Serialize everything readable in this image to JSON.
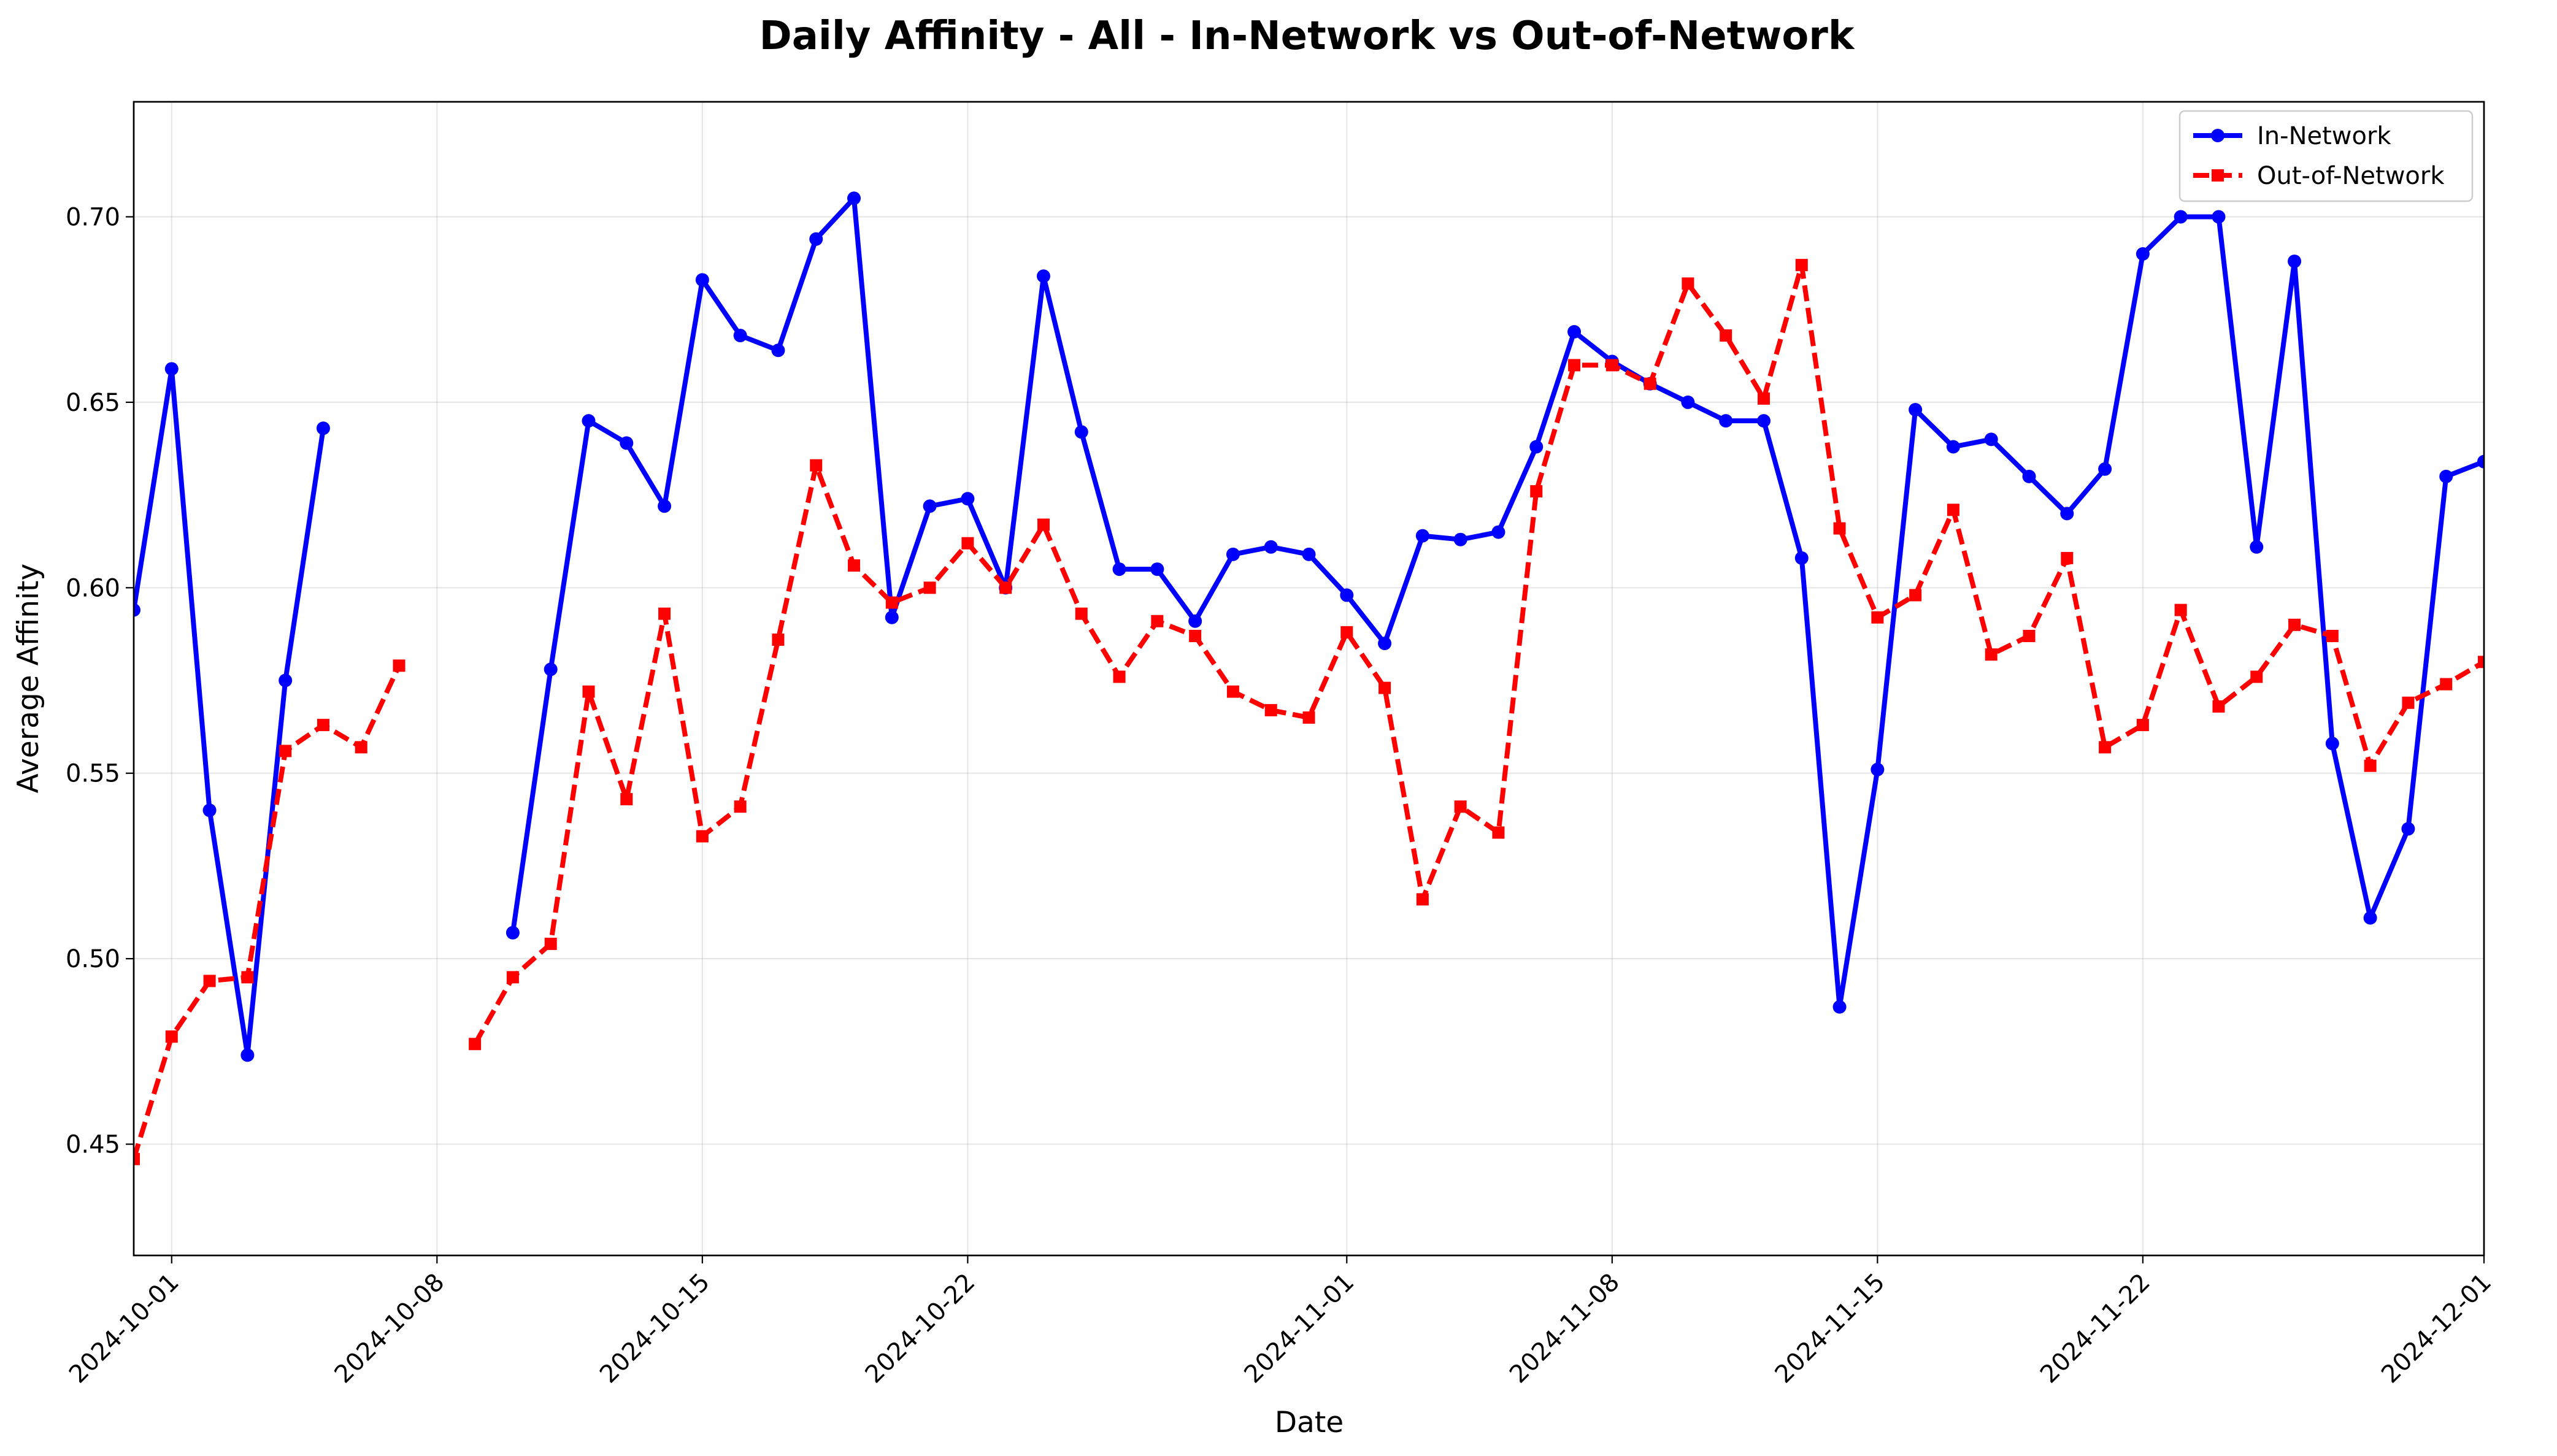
{
  "chart_data": {
    "type": "line",
    "title": "Daily Affinity - All - In-Network vs Out-of-Network",
    "xlabel": "Date",
    "ylabel": "Average Affinity",
    "xlim": [
      "2024-09-30",
      "2024-12-01"
    ],
    "ylim": [
      0.42,
      0.731
    ],
    "x_tick_labels": [
      "2024-10-01",
      "2024-10-08",
      "2024-10-15",
      "2024-10-22",
      "2024-11-01",
      "2024-11-08",
      "2024-11-15",
      "2024-11-22",
      "2024-12-01"
    ],
    "y_tick_labels": [
      "0.45",
      "0.50",
      "0.55",
      "0.60",
      "0.65",
      "0.70"
    ],
    "grid": true,
    "legend_position": "top-right",
    "series": [
      {
        "name": "In-Network",
        "color": "#0000ff",
        "line_style": "solid",
        "marker": "circle",
        "points": [
          [
            "2024-09-30",
            0.594
          ],
          [
            "2024-10-01",
            0.659
          ],
          [
            "2024-10-02",
            0.54
          ],
          [
            "2024-10-03",
            0.474
          ],
          [
            "2024-10-04",
            0.575
          ],
          [
            "2024-10-05",
            0.643
          ],
          [
            "2024-10-10",
            0.507
          ],
          [
            "2024-10-11",
            0.578
          ],
          [
            "2024-10-12",
            0.645
          ],
          [
            "2024-10-13",
            0.639
          ],
          [
            "2024-10-14",
            0.622
          ],
          [
            "2024-10-15",
            0.683
          ],
          [
            "2024-10-16",
            0.668
          ],
          [
            "2024-10-17",
            0.664
          ],
          [
            "2024-10-18",
            0.694
          ],
          [
            "2024-10-19",
            0.705
          ],
          [
            "2024-10-20",
            0.592
          ],
          [
            "2024-10-21",
            0.622
          ],
          [
            "2024-10-22",
            0.624
          ],
          [
            "2024-10-23",
            0.6
          ],
          [
            "2024-10-24",
            0.684
          ],
          [
            "2024-10-25",
            0.642
          ],
          [
            "2024-10-26",
            0.605
          ],
          [
            "2024-10-27",
            0.605
          ],
          [
            "2024-10-28",
            0.591
          ],
          [
            "2024-10-29",
            0.609
          ],
          [
            "2024-10-30",
            0.611
          ],
          [
            "2024-10-31",
            0.609
          ],
          [
            "2024-11-01",
            0.598
          ],
          [
            "2024-11-02",
            0.585
          ],
          [
            "2024-11-03",
            0.614
          ],
          [
            "2024-11-04",
            0.613
          ],
          [
            "2024-11-05",
            0.615
          ],
          [
            "2024-11-06",
            0.638
          ],
          [
            "2024-11-07",
            0.669
          ],
          [
            "2024-11-08",
            0.661
          ],
          [
            "2024-11-09",
            0.655
          ],
          [
            "2024-11-10",
            0.65
          ],
          [
            "2024-11-11",
            0.645
          ],
          [
            "2024-11-12",
            0.645
          ],
          [
            "2024-11-13",
            0.608
          ],
          [
            "2024-11-14",
            0.487
          ],
          [
            "2024-11-15",
            0.551
          ],
          [
            "2024-11-16",
            0.648
          ],
          [
            "2024-11-17",
            0.638
          ],
          [
            "2024-11-18",
            0.64
          ],
          [
            "2024-11-19",
            0.63
          ],
          [
            "2024-11-20",
            0.62
          ],
          [
            "2024-11-21",
            0.632
          ],
          [
            "2024-11-22",
            0.69
          ],
          [
            "2024-11-23",
            0.7
          ],
          [
            "2024-11-24",
            0.7
          ],
          [
            "2024-11-25",
            0.611
          ],
          [
            "2024-11-26",
            0.688
          ],
          [
            "2024-11-27",
            0.558
          ],
          [
            "2024-11-28",
            0.511
          ],
          [
            "2024-11-29",
            0.535
          ],
          [
            "2024-11-30",
            0.63
          ],
          [
            "2024-12-01",
            0.634
          ]
        ]
      },
      {
        "name": "Out-of-Network",
        "color": "#ff0000",
        "line_style": "dashed",
        "marker": "square",
        "points": [
          [
            "2024-09-30",
            0.446
          ],
          [
            "2024-10-01",
            0.479
          ],
          [
            "2024-10-02",
            0.494
          ],
          [
            "2024-10-03",
            0.495
          ],
          [
            "2024-10-04",
            0.556
          ],
          [
            "2024-10-05",
            0.563
          ],
          [
            "2024-10-06",
            0.557
          ],
          [
            "2024-10-07",
            0.579
          ],
          [
            "2024-10-09",
            0.477
          ],
          [
            "2024-10-10",
            0.495
          ],
          [
            "2024-10-11",
            0.504
          ],
          [
            "2024-10-12",
            0.572
          ],
          [
            "2024-10-13",
            0.543
          ],
          [
            "2024-10-14",
            0.593
          ],
          [
            "2024-10-15",
            0.533
          ],
          [
            "2024-10-16",
            0.541
          ],
          [
            "2024-10-17",
            0.586
          ],
          [
            "2024-10-18",
            0.633
          ],
          [
            "2024-10-19",
            0.606
          ],
          [
            "2024-10-20",
            0.596
          ],
          [
            "2024-10-21",
            0.6
          ],
          [
            "2024-10-22",
            0.612
          ],
          [
            "2024-10-23",
            0.6
          ],
          [
            "2024-10-24",
            0.617
          ],
          [
            "2024-10-25",
            0.593
          ],
          [
            "2024-10-26",
            0.576
          ],
          [
            "2024-10-27",
            0.591
          ],
          [
            "2024-10-28",
            0.587
          ],
          [
            "2024-10-29",
            0.572
          ],
          [
            "2024-10-30",
            0.567
          ],
          [
            "2024-10-31",
            0.565
          ],
          [
            "2024-11-01",
            0.588
          ],
          [
            "2024-11-02",
            0.573
          ],
          [
            "2024-11-03",
            0.516
          ],
          [
            "2024-11-04",
            0.541
          ],
          [
            "2024-11-05",
            0.534
          ],
          [
            "2024-11-06",
            0.626
          ],
          [
            "2024-11-07",
            0.66
          ],
          [
            "2024-11-08",
            0.66
          ],
          [
            "2024-11-09",
            0.655
          ],
          [
            "2024-11-10",
            0.682
          ],
          [
            "2024-11-11",
            0.668
          ],
          [
            "2024-11-12",
            0.651
          ],
          [
            "2024-11-13",
            0.687
          ],
          [
            "2024-11-14",
            0.616
          ],
          [
            "2024-11-15",
            0.592
          ],
          [
            "2024-11-16",
            0.598
          ],
          [
            "2024-11-17",
            0.621
          ],
          [
            "2024-11-18",
            0.582
          ],
          [
            "2024-11-19",
            0.587
          ],
          [
            "2024-11-20",
            0.608
          ],
          [
            "2024-11-21",
            0.557
          ],
          [
            "2024-11-22",
            0.563
          ],
          [
            "2024-11-23",
            0.594
          ],
          [
            "2024-11-24",
            0.568
          ],
          [
            "2024-11-25",
            0.576
          ],
          [
            "2024-11-26",
            0.59
          ],
          [
            "2024-11-27",
            0.587
          ],
          [
            "2024-11-28",
            0.552
          ],
          [
            "2024-11-29",
            0.569
          ],
          [
            "2024-11-30",
            0.574
          ],
          [
            "2024-12-01",
            0.58
          ]
        ]
      }
    ]
  }
}
